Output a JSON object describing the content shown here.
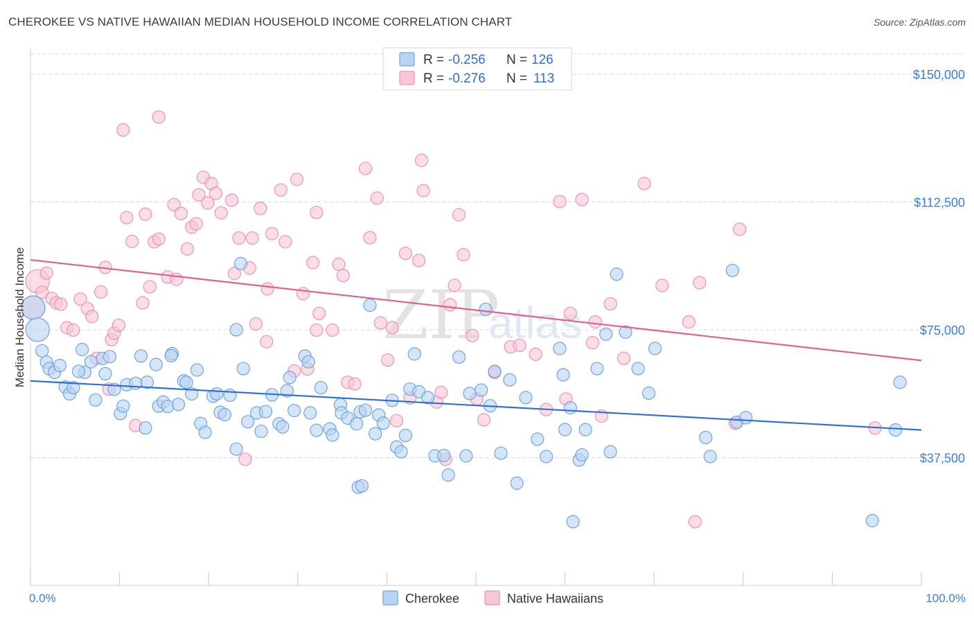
{
  "header": {
    "title": "CHEROKEE VS NATIVE HAWAIIAN MEDIAN HOUSEHOLD INCOME CORRELATION CHART",
    "source": "Source: ZipAtlas.com"
  },
  "legend": {
    "r_label": "R =",
    "n_label": "N =",
    "series": [
      {
        "name": "Cherokee",
        "r": "-0.256",
        "n": "126"
      },
      {
        "name": "Native Hawaiians",
        "r": "-0.276",
        "n": "113"
      }
    ]
  },
  "watermark": {
    "zip": "ZIP",
    "atlas": "atlas"
  },
  "colors": {
    "cherokee_fill": "#b9d3f3",
    "cherokee_stroke": "#6fa3e0",
    "cherokee_line": "#2f6fd6",
    "hawaiian_fill": "#f8c6d6",
    "hawaiian_stroke": "#ec93b1",
    "hawaiian_line": "#e0608f",
    "grid": "#d9d9d9",
    "axis_text": "#3b7dd8"
  },
  "chart_data": {
    "type": "scatter",
    "title": "CHEROKEE VS NATIVE HAWAIIAN MEDIAN HOUSEHOLD INCOME CORRELATION CHART",
    "xlabel": "",
    "ylabel": "Median Household Income",
    "xlim": [
      0,
      100
    ],
    "ylim": [
      0,
      157500
    ],
    "x_tick_labels": [
      "0.0%",
      "100.0%"
    ],
    "y_ticks": [
      37500,
      75000,
      112500,
      150000
    ],
    "y_tick_labels": [
      "$37,500",
      "$75,000",
      "$112,500",
      "$150,000"
    ],
    "legend_position": "top-center",
    "series": [
      {
        "name": "Cherokee",
        "r": -0.256,
        "n": 126,
        "trend": {
          "x": [
            0,
            100
          ],
          "y": [
            60000,
            45600
          ]
        },
        "points": [
          [
            0.3,
            81500
          ],
          [
            0.8,
            75000
          ],
          [
            1.3,
            68800
          ],
          [
            1.8,
            65500
          ],
          [
            2.1,
            63600
          ],
          [
            2.7,
            62500
          ],
          [
            3.3,
            64500
          ],
          [
            3.9,
            58200
          ],
          [
            4.4,
            56200
          ],
          [
            4.8,
            58000
          ],
          [
            5.8,
            69200
          ],
          [
            6.1,
            62500
          ],
          [
            5.4,
            62800
          ],
          [
            6.8,
            65600
          ],
          [
            7.3,
            54400
          ],
          [
            8.1,
            66600
          ],
          [
            8.4,
            62100
          ],
          [
            8.9,
            67100
          ],
          [
            9.4,
            57500
          ],
          [
            10.1,
            50400
          ],
          [
            10.4,
            52600
          ],
          [
            10.8,
            58900
          ],
          [
            11.8,
            59300
          ],
          [
            12.4,
            67300
          ],
          [
            13.1,
            59600
          ],
          [
            12.9,
            46200
          ],
          [
            14.1,
            64800
          ],
          [
            14.4,
            52600
          ],
          [
            14.9,
            53800
          ],
          [
            15.4,
            52500
          ],
          [
            15.9,
            68000
          ],
          [
            15.8,
            67400
          ],
          [
            16.6,
            53100
          ],
          [
            17.2,
            60000
          ],
          [
            17.5,
            59600
          ],
          [
            18.1,
            56200
          ],
          [
            18.7,
            63200
          ],
          [
            19.1,
            47500
          ],
          [
            19.6,
            44900
          ],
          [
            20.5,
            55500
          ],
          [
            20.9,
            56200
          ],
          [
            21.3,
            50800
          ],
          [
            21.8,
            50100
          ],
          [
            22.4,
            55800
          ],
          [
            23.1,
            40000
          ],
          [
            23.6,
            94400
          ],
          [
            23.1,
            75000
          ],
          [
            23.9,
            63600
          ],
          [
            24.4,
            48000
          ],
          [
            25.4,
            50600
          ],
          [
            25.9,
            45200
          ],
          [
            26.4,
            51000
          ],
          [
            27.1,
            55900
          ],
          [
            27.9,
            47400
          ],
          [
            28.3,
            46500
          ],
          [
            28.8,
            57100
          ],
          [
            29.1,
            61000
          ],
          [
            29.6,
            51300
          ],
          [
            30.8,
            67300
          ],
          [
            31.2,
            65600
          ],
          [
            31.4,
            50600
          ],
          [
            32.1,
            45500
          ],
          [
            32.6,
            58000
          ],
          [
            33.6,
            45900
          ],
          [
            33.9,
            44100
          ],
          [
            34.8,
            53000
          ],
          [
            34.9,
            50600
          ],
          [
            35.6,
            49100
          ],
          [
            36.6,
            47400
          ],
          [
            37.0,
            50900
          ],
          [
            36.8,
            28800
          ],
          [
            37.2,
            29200
          ],
          [
            37.6,
            51400
          ],
          [
            38.1,
            82200
          ],
          [
            38.7,
            44500
          ],
          [
            39.1,
            50000
          ],
          [
            39.6,
            47600
          ],
          [
            40.6,
            54300
          ],
          [
            41.1,
            40600
          ],
          [
            41.6,
            39200
          ],
          [
            42.1,
            44000
          ],
          [
            42.6,
            57600
          ],
          [
            43.1,
            67900
          ],
          [
            43.6,
            56800
          ],
          [
            44.6,
            55100
          ],
          [
            45.4,
            38000
          ],
          [
            46.4,
            38100
          ],
          [
            46.9,
            32400
          ],
          [
            48.1,
            67000
          ],
          [
            48.9,
            38000
          ],
          [
            49.3,
            56300
          ],
          [
            50.6,
            57300
          ],
          [
            51.1,
            81000
          ],
          [
            51.6,
            52700
          ],
          [
            52.1,
            62800
          ],
          [
            52.8,
            38800
          ],
          [
            53.8,
            60300
          ],
          [
            54.6,
            30000
          ],
          [
            55.6,
            55100
          ],
          [
            56.9,
            42900
          ],
          [
            57.9,
            37800
          ],
          [
            59.4,
            69500
          ],
          [
            59.8,
            61800
          ],
          [
            60.0,
            45700
          ],
          [
            60.6,
            52100
          ],
          [
            61.6,
            36800
          ],
          [
            61.9,
            38300
          ],
          [
            62.3,
            45700
          ],
          [
            63.6,
            63600
          ],
          [
            64.6,
            73700
          ],
          [
            65.1,
            39200
          ],
          [
            65.8,
            91300
          ],
          [
            66.8,
            74300
          ],
          [
            68.2,
            63600
          ],
          [
            69.4,
            56400
          ],
          [
            70.1,
            69500
          ],
          [
            75.8,
            43400
          ],
          [
            76.3,
            37800
          ],
          [
            78.8,
            92400
          ],
          [
            79.3,
            47900
          ],
          [
            80.3,
            49200
          ],
          [
            97.1,
            45600
          ],
          [
            97.6,
            59600
          ],
          [
            60.9,
            18700
          ],
          [
            94.5,
            19000
          ]
        ]
      },
      {
        "name": "Native Hawaiians",
        "r": -0.276,
        "n": 113,
        "trend": {
          "x": [
            0,
            100
          ],
          "y": [
            95500,
            66000
          ]
        },
        "points": [
          [
            0.3,
            81500
          ],
          [
            0.8,
            89200
          ],
          [
            1.3,
            86000
          ],
          [
            1.8,
            91600
          ],
          [
            2.4,
            84200
          ],
          [
            2.9,
            82900
          ],
          [
            3.4,
            82500
          ],
          [
            4.1,
            75600
          ],
          [
            4.8,
            74900
          ],
          [
            5.6,
            84000
          ],
          [
            6.4,
            81200
          ],
          [
            6.9,
            78900
          ],
          [
            7.4,
            66600
          ],
          [
            7.9,
            86100
          ],
          [
            8.4,
            93300
          ],
          [
            8.8,
            57600
          ],
          [
            9.1,
            72100
          ],
          [
            9.4,
            74000
          ],
          [
            9.9,
            76300
          ],
          [
            10.4,
            133600
          ],
          [
            10.8,
            107900
          ],
          [
            11.4,
            100900
          ],
          [
            11.8,
            46900
          ],
          [
            12.6,
            82900
          ],
          [
            12.9,
            108900
          ],
          [
            13.4,
            87600
          ],
          [
            13.9,
            100800
          ],
          [
            14.4,
            101600
          ],
          [
            14.4,
            137400
          ],
          [
            15.4,
            90500
          ],
          [
            16.1,
            111700
          ],
          [
            16.4,
            89800
          ],
          [
            16.9,
            109100
          ],
          [
            17.6,
            98700
          ],
          [
            18.1,
            105100
          ],
          [
            18.6,
            106100
          ],
          [
            18.9,
            114600
          ],
          [
            19.4,
            119700
          ],
          [
            19.9,
            112200
          ],
          [
            20.3,
            117900
          ],
          [
            20.8,
            115000
          ],
          [
            21.4,
            109300
          ],
          [
            22.9,
            91500
          ],
          [
            23.4,
            101900
          ],
          [
            24.1,
            37000
          ],
          [
            24.6,
            93100
          ],
          [
            24.9,
            101900
          ],
          [
            25.3,
            76700
          ],
          [
            25.8,
            110600
          ],
          [
            26.6,
            87000
          ],
          [
            27.1,
            103200
          ],
          [
            28.1,
            116000
          ],
          [
            28.6,
            100800
          ],
          [
            29.6,
            62900
          ],
          [
            29.9,
            119100
          ],
          [
            30.6,
            85600
          ],
          [
            31.1,
            63500
          ],
          [
            32.1,
            74900
          ],
          [
            32.1,
            109400
          ],
          [
            32.4,
            79800
          ],
          [
            33.9,
            74900
          ],
          [
            34.6,
            94200
          ],
          [
            35.1,
            90900
          ],
          [
            35.6,
            59600
          ],
          [
            36.4,
            59100
          ],
          [
            37.6,
            122300
          ],
          [
            38.1,
            102000
          ],
          [
            38.9,
            113600
          ],
          [
            39.3,
            77000
          ],
          [
            40.1,
            66100
          ],
          [
            40.6,
            75600
          ],
          [
            41.1,
            48300
          ],
          [
            42.1,
            97400
          ],
          [
            42.6,
            55000
          ],
          [
            43.6,
            95300
          ],
          [
            43.9,
            124700
          ],
          [
            44.1,
            115800
          ],
          [
            45.6,
            53800
          ],
          [
            46.1,
            56600
          ],
          [
            46.6,
            37000
          ],
          [
            47.1,
            82300
          ],
          [
            47.6,
            88000
          ],
          [
            48.1,
            108700
          ],
          [
            48.6,
            97000
          ],
          [
            50.1,
            54700
          ],
          [
            50.9,
            48600
          ],
          [
            52.1,
            62500
          ],
          [
            53.9,
            70000
          ],
          [
            54.9,
            70400
          ],
          [
            57.9,
            51600
          ],
          [
            59.4,
            112600
          ],
          [
            60.1,
            54700
          ],
          [
            60.6,
            79800
          ],
          [
            61.9,
            113200
          ],
          [
            63.1,
            71200
          ],
          [
            63.4,
            77300
          ],
          [
            64.1,
            49700
          ],
          [
            65.1,
            82600
          ],
          [
            66.6,
            66600
          ],
          [
            68.9,
            117900
          ],
          [
            70.9,
            88000
          ],
          [
            73.9,
            77300
          ],
          [
            74.6,
            18700
          ],
          [
            75.1,
            88800
          ],
          [
            79.1,
            47600
          ],
          [
            79.6,
            104500
          ],
          [
            94.8,
            46200
          ],
          [
            22.6,
            113000
          ],
          [
            26.5,
            71500
          ],
          [
            31.7,
            94700
          ],
          [
            49.6,
            73300
          ],
          [
            56.7,
            67800
          ]
        ]
      }
    ]
  }
}
